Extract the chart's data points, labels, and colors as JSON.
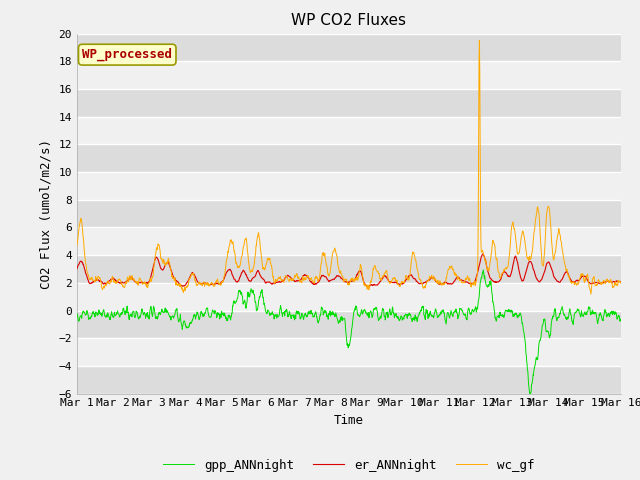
{
  "title": "WP CO2 Fluxes",
  "xlabel": "Time",
  "ylabel_display": "CO2 Flux (umol/m2/s)",
  "ylim": [
    -6,
    20
  ],
  "line_colors": {
    "gpp": "#00dd00",
    "er": "#dd0000",
    "wc": "#ffaa00"
  },
  "legend_labels": [
    "gpp_ANNnight",
    "er_ANNnight",
    "wc_gf"
  ],
  "annotation_text": "WP_processed",
  "annotation_color": "#aa0000",
  "annotation_bg": "#ffffcc",
  "annotation_border": "#999900",
  "bg_light": "#f0f0f0",
  "bg_dark": "#dcdcdc",
  "title_fontsize": 11,
  "axis_fontsize": 9,
  "tick_fontsize": 8
}
